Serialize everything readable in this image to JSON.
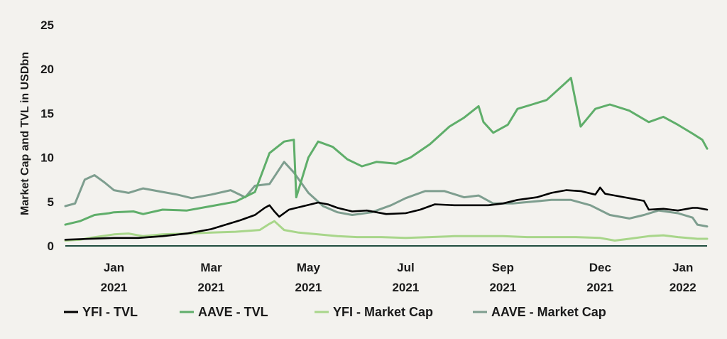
{
  "chart_data": {
    "type": "line",
    "title": "",
    "ylabel": "Market Cap and TVL in USDbn",
    "xlabel": "",
    "ylim": [
      0,
      25
    ],
    "yticks": [
      0,
      5,
      10,
      15,
      20,
      25
    ],
    "ytick_labels": [
      "0",
      "5",
      "10",
      "15",
      "20",
      "25"
    ],
    "xlim": [
      0,
      13.2
    ],
    "xticks": [
      {
        "x": 1,
        "month": "Jan",
        "year": "2021"
      },
      {
        "x": 3,
        "month": "Mar",
        "year": "2021"
      },
      {
        "x": 5,
        "month": "May",
        "year": "2021"
      },
      {
        "x": 7,
        "month": "Jul",
        "year": "2021"
      },
      {
        "x": 9,
        "month": "Sep",
        "year": "2021"
      },
      {
        "x": 11,
        "month": "Dec",
        "year": "2021"
      },
      {
        "x": 12.7,
        "month": "Jan",
        "year": "2022"
      }
    ],
    "legend_position": "bottom",
    "series": [
      {
        "name": "YFI - TVL",
        "color": "#000000",
        "points": [
          [
            0,
            0.7
          ],
          [
            0.5,
            0.8
          ],
          [
            1,
            0.9
          ],
          [
            1.5,
            0.9
          ],
          [
            2,
            1.1
          ],
          [
            2.5,
            1.4
          ],
          [
            3,
            1.9
          ],
          [
            3.3,
            2.4
          ],
          [
            3.6,
            2.9
          ],
          [
            3.9,
            3.5
          ],
          [
            4.1,
            4.3
          ],
          [
            4.2,
            4.6
          ],
          [
            4.3,
            3.9
          ],
          [
            4.4,
            3.3
          ],
          [
            4.6,
            4.1
          ],
          [
            4.9,
            4.5
          ],
          [
            5.2,
            4.9
          ],
          [
            5.4,
            4.7
          ],
          [
            5.6,
            4.3
          ],
          [
            5.9,
            3.9
          ],
          [
            6.2,
            4.0
          ],
          [
            6.6,
            3.6
          ],
          [
            7,
            3.7
          ],
          [
            7.3,
            4.1
          ],
          [
            7.6,
            4.7
          ],
          [
            8,
            4.6
          ],
          [
            8.3,
            4.6
          ],
          [
            8.7,
            4.6
          ],
          [
            9,
            4.8
          ],
          [
            9.3,
            5.2
          ],
          [
            9.7,
            5.5
          ],
          [
            10,
            6.0
          ],
          [
            10.3,
            6.3
          ],
          [
            10.6,
            6.2
          ],
          [
            10.9,
            5.8
          ],
          [
            11,
            6.6
          ],
          [
            11.1,
            5.9
          ],
          [
            11.5,
            5.5
          ],
          [
            11.9,
            5.1
          ],
          [
            12,
            4.1
          ],
          [
            12.3,
            4.2
          ],
          [
            12.6,
            4.0
          ],
          [
            12.9,
            4.3
          ],
          [
            13,
            4.3
          ],
          [
            13.2,
            4.1
          ]
        ]
      },
      {
        "name": "AAVE - TVL",
        "color": "#5fae6a",
        "points": [
          [
            0,
            2.4
          ],
          [
            0.3,
            2.8
          ],
          [
            0.6,
            3.5
          ],
          [
            0.9,
            3.7
          ],
          [
            1,
            3.8
          ],
          [
            1.4,
            3.9
          ],
          [
            1.6,
            3.6
          ],
          [
            2,
            4.1
          ],
          [
            2.5,
            4.0
          ],
          [
            3,
            4.5
          ],
          [
            3.5,
            5.0
          ],
          [
            3.9,
            6.1
          ],
          [
            4.2,
            10.5
          ],
          [
            4.5,
            11.8
          ],
          [
            4.7,
            12.0
          ],
          [
            4.75,
            5.5
          ],
          [
            5.0,
            10.0
          ],
          [
            5.2,
            11.8
          ],
          [
            5.5,
            11.2
          ],
          [
            5.8,
            9.8
          ],
          [
            6.1,
            9.0
          ],
          [
            6.4,
            9.5
          ],
          [
            6.8,
            9.3
          ],
          [
            7.1,
            10.0
          ],
          [
            7.5,
            11.5
          ],
          [
            7.9,
            13.5
          ],
          [
            8.2,
            14.5
          ],
          [
            8.5,
            15.8
          ],
          [
            8.6,
            14.0
          ],
          [
            8.8,
            12.8
          ],
          [
            9.1,
            13.7
          ],
          [
            9.3,
            15.5
          ],
          [
            9.6,
            16.0
          ],
          [
            9.9,
            16.5
          ],
          [
            10.1,
            17.5
          ],
          [
            10.3,
            18.5
          ],
          [
            10.4,
            19.0
          ],
          [
            10.6,
            13.5
          ],
          [
            10.9,
            15.5
          ],
          [
            11.2,
            16.0
          ],
          [
            11.6,
            15.3
          ],
          [
            12.0,
            14.0
          ],
          [
            12.3,
            14.6
          ],
          [
            12.6,
            13.7
          ],
          [
            12.9,
            12.7
          ],
          [
            13.1,
            12.0
          ],
          [
            13.2,
            11.0
          ]
        ]
      },
      {
        "name": "YFI - Market Cap",
        "color": "#a8d68a",
        "points": [
          [
            0,
            0.6
          ],
          [
            0.3,
            0.7
          ],
          [
            0.5,
            0.9
          ],
          [
            1,
            1.3
          ],
          [
            1.3,
            1.4
          ],
          [
            1.6,
            1.1
          ],
          [
            2,
            1.3
          ],
          [
            2.5,
            1.4
          ],
          [
            3,
            1.5
          ],
          [
            3.5,
            1.6
          ],
          [
            4,
            1.8
          ],
          [
            4.2,
            2.5
          ],
          [
            4.3,
            2.8
          ],
          [
            4.5,
            1.8
          ],
          [
            4.8,
            1.5
          ],
          [
            5.2,
            1.3
          ],
          [
            5.6,
            1.1
          ],
          [
            6,
            1.0
          ],
          [
            6.5,
            1.0
          ],
          [
            7,
            0.9
          ],
          [
            7.5,
            1.0
          ],
          [
            8,
            1.1
          ],
          [
            8.5,
            1.1
          ],
          [
            9,
            1.1
          ],
          [
            9.5,
            1.0
          ],
          [
            10,
            1.0
          ],
          [
            10.5,
            1.0
          ],
          [
            11,
            0.9
          ],
          [
            11.3,
            0.6
          ],
          [
            11.6,
            0.8
          ],
          [
            12,
            1.1
          ],
          [
            12.3,
            1.2
          ],
          [
            12.6,
            1.0
          ],
          [
            13,
            0.8
          ],
          [
            13.2,
            0.8
          ]
        ]
      },
      {
        "name": "AAVE - Market Cap",
        "color": "#7e9e8f",
        "points": [
          [
            0,
            4.5
          ],
          [
            0.2,
            4.8
          ],
          [
            0.4,
            7.5
          ],
          [
            0.6,
            8.0
          ],
          [
            0.8,
            7.2
          ],
          [
            1.0,
            6.3
          ],
          [
            1.3,
            6.0
          ],
          [
            1.6,
            6.5
          ],
          [
            2.0,
            6.1
          ],
          [
            2.3,
            5.8
          ],
          [
            2.6,
            5.4
          ],
          [
            3.0,
            5.8
          ],
          [
            3.4,
            6.3
          ],
          [
            3.7,
            5.5
          ],
          [
            3.9,
            6.8
          ],
          [
            4.2,
            7.0
          ],
          [
            4.5,
            9.5
          ],
          [
            4.7,
            8.3
          ],
          [
            5.0,
            6.0
          ],
          [
            5.3,
            4.5
          ],
          [
            5.6,
            3.8
          ],
          [
            5.9,
            3.5
          ],
          [
            6.3,
            3.8
          ],
          [
            6.7,
            4.6
          ],
          [
            7.0,
            5.4
          ],
          [
            7.4,
            6.2
          ],
          [
            7.8,
            6.2
          ],
          [
            8.2,
            5.5
          ],
          [
            8.5,
            5.7
          ],
          [
            8.8,
            4.8
          ],
          [
            9.2,
            4.8
          ],
          [
            9.6,
            5.0
          ],
          [
            10,
            5.2
          ],
          [
            10.4,
            5.2
          ],
          [
            10.8,
            4.6
          ],
          [
            11.2,
            3.5
          ],
          [
            11.6,
            3.1
          ],
          [
            11.9,
            3.5
          ],
          [
            12.2,
            4.0
          ],
          [
            12.6,
            3.7
          ],
          [
            12.9,
            3.2
          ],
          [
            13.0,
            2.4
          ],
          [
            13.2,
            2.2
          ]
        ]
      }
    ]
  }
}
